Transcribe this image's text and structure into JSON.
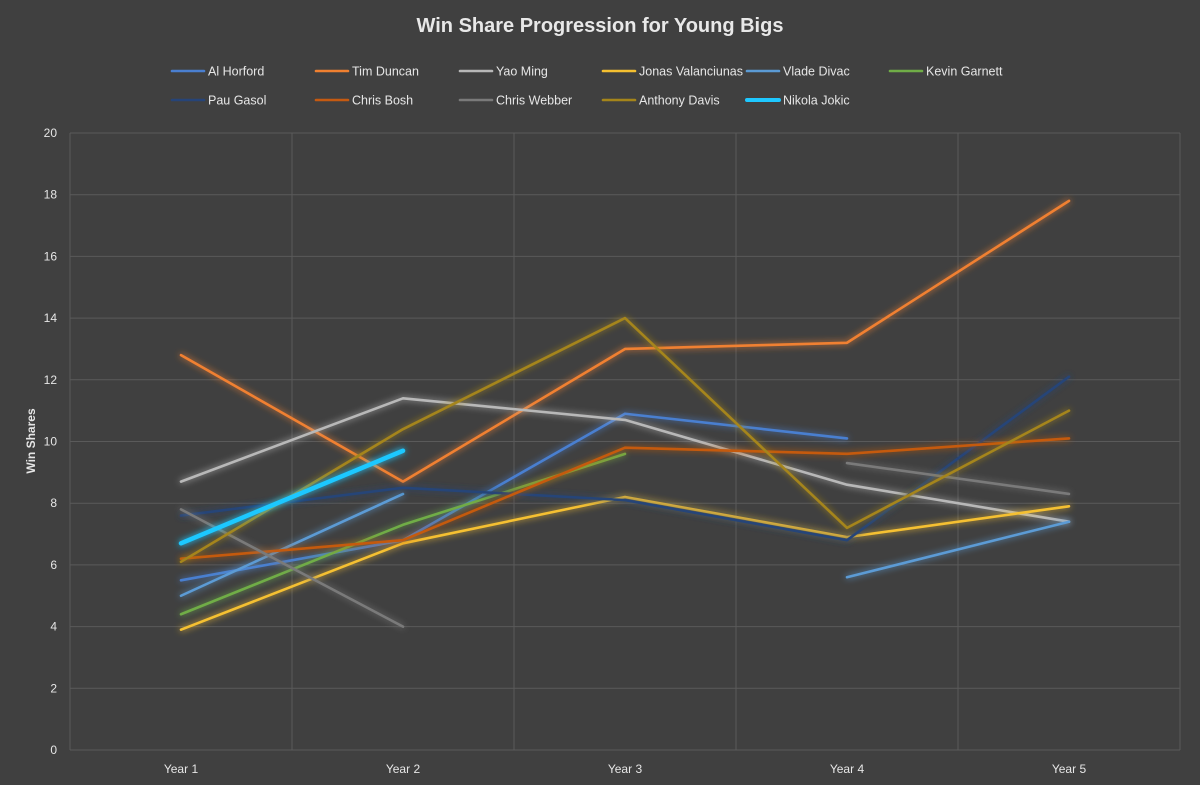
{
  "chart_data": {
    "type": "line",
    "title": "Win Share Progression for Young Bigs",
    "xlabel": "",
    "ylabel": "Win Shares",
    "categories": [
      "Year 1",
      "Year 2",
      "Year 3",
      "Year 4",
      "Year 5"
    ],
    "ylim": [
      0,
      20
    ],
    "yticks": [
      0,
      2,
      4,
      6,
      8,
      10,
      12,
      14,
      16,
      18,
      20
    ],
    "grid": true,
    "legend_position": "top",
    "series": [
      {
        "name": "Al Horford",
        "color": "#4a7fd0",
        "values": [
          5.5,
          6.8,
          10.9,
          10.1,
          null
        ]
      },
      {
        "name": "Tim Duncan",
        "color": "#f08030",
        "values": [
          12.8,
          8.7,
          13.0,
          13.2,
          17.8
        ]
      },
      {
        "name": "Yao Ming",
        "color": "#b8b8b8",
        "values": [
          8.7,
          11.4,
          10.7,
          8.6,
          7.4
        ]
      },
      {
        "name": "Jonas Valanciunas",
        "color": "#f5c030",
        "values": [
          3.9,
          6.7,
          8.2,
          6.9,
          7.9
        ]
      },
      {
        "name": "Vlade Divac",
        "color": "#5b9bd5",
        "values": [
          5.0,
          8.3,
          null,
          5.6,
          7.4
        ]
      },
      {
        "name": "Kevin Garnett",
        "color": "#70ad47",
        "values": [
          4.4,
          7.3,
          9.6,
          null,
          null
        ]
      },
      {
        "name": "Pau Gasol",
        "color": "#264478",
        "values": [
          7.6,
          8.5,
          8.1,
          6.8,
          12.1
        ]
      },
      {
        "name": "Chris Bosh",
        "color": "#c55a11",
        "values": [
          6.2,
          6.8,
          9.8,
          9.6,
          10.1
        ]
      },
      {
        "name": "Chris Webber",
        "color": "#7a7a7a",
        "values": [
          7.8,
          4.0,
          null,
          9.3,
          8.3
        ]
      },
      {
        "name": "Anthony Davis",
        "color": "#a5851a",
        "values": [
          6.1,
          10.4,
          14.0,
          7.2,
          11.0
        ]
      },
      {
        "name": "Nikola Jokic",
        "color": "#1ec8ff",
        "values": [
          6.7,
          9.7,
          null,
          null,
          null
        ]
      }
    ]
  }
}
